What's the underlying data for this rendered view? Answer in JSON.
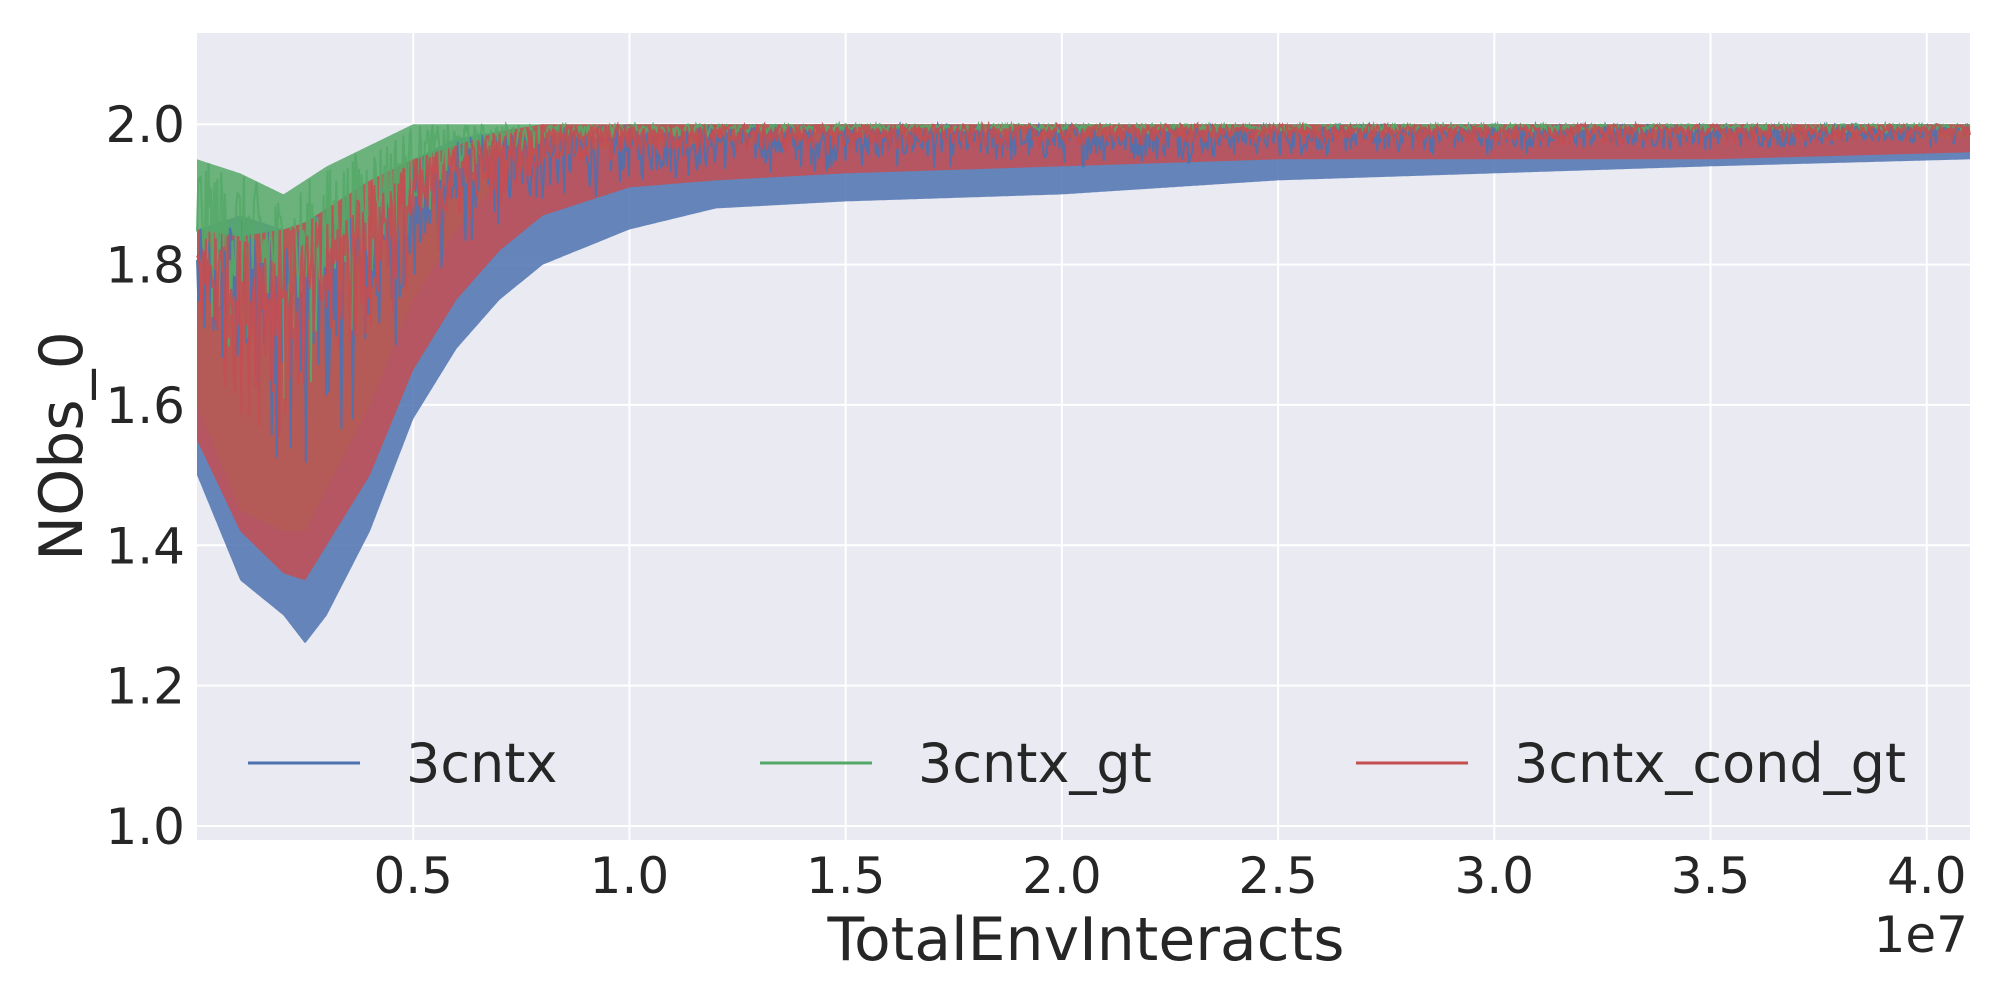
{
  "chart_data": {
    "type": "line",
    "xlabel": "TotalEnvInteracts",
    "ylabel": "NObs_0",
    "x_offset_label": "1e7",
    "xlim": [
      0,
      41000000
    ],
    "ylim": [
      0.98,
      2.13
    ],
    "x_ticks": [
      5000000,
      10000000,
      15000000,
      20000000,
      25000000,
      30000000,
      35000000,
      40000000
    ],
    "x_tick_labels": [
      "0.5",
      "1.0",
      "1.5",
      "2.0",
      "2.5",
      "3.0",
      "3.5",
      "4.0"
    ],
    "y_ticks": [
      1.0,
      1.2,
      1.4,
      1.6,
      1.8,
      2.0
    ],
    "y_tick_labels": [
      "1.0",
      "1.2",
      "1.4",
      "1.6",
      "1.8",
      "2.0"
    ],
    "grid": true,
    "legend_position": "lower center",
    "background_color": "#eaeaf2",
    "series": [
      {
        "name": "3cntx",
        "color": "#4c72b0",
        "x": [
          0,
          1000000,
          2000000,
          2500000,
          3000000,
          4000000,
          5000000,
          6000000,
          7000000,
          8000000,
          10000000,
          12000000,
          15000000,
          20000000,
          25000000,
          30000000,
          35000000,
          41000000
        ],
        "upper": [
          1.85,
          1.87,
          1.85,
          1.86,
          1.88,
          1.9,
          1.95,
          1.98,
          1.99,
          1.995,
          2.0,
          2.0,
          2.0,
          2.0,
          2.0,
          2.0,
          2.0,
          2.0
        ],
        "lower": [
          1.5,
          1.35,
          1.3,
          1.26,
          1.3,
          1.42,
          1.58,
          1.68,
          1.75,
          1.8,
          1.85,
          1.88,
          1.89,
          1.9,
          1.92,
          1.93,
          1.94,
          1.95
        ]
      },
      {
        "name": "3cntx_gt",
        "color": "#55a868",
        "x": [
          0,
          1000000,
          2000000,
          2500000,
          3000000,
          4000000,
          5000000,
          6000000,
          7000000,
          8000000,
          10000000,
          12000000,
          15000000,
          20000000,
          25000000,
          30000000,
          35000000,
          41000000
        ],
        "upper": [
          1.95,
          1.93,
          1.9,
          1.92,
          1.94,
          1.97,
          2.0,
          2.0,
          2.0,
          2.0,
          2.0,
          2.0,
          2.0,
          2.0,
          2.0,
          2.0,
          2.0,
          2.0
        ],
        "lower": [
          1.6,
          1.45,
          1.42,
          1.42,
          1.48,
          1.6,
          1.75,
          1.85,
          1.92,
          1.95,
          1.97,
          1.97,
          1.98,
          1.98,
          1.98,
          1.98,
          1.98,
          1.98
        ]
      },
      {
        "name": "3cntx_cond_gt",
        "color": "#c44e52",
        "x": [
          0,
          1000000,
          2000000,
          2500000,
          3000000,
          4000000,
          5000000,
          6000000,
          7000000,
          8000000,
          10000000,
          12000000,
          15000000,
          20000000,
          25000000,
          30000000,
          35000000,
          41000000
        ],
        "upper": [
          1.85,
          1.84,
          1.85,
          1.86,
          1.88,
          1.92,
          1.95,
          1.97,
          1.99,
          2.0,
          2.0,
          2.0,
          2.0,
          2.0,
          2.0,
          2.0,
          2.0,
          2.0
        ],
        "lower": [
          1.55,
          1.42,
          1.36,
          1.35,
          1.4,
          1.5,
          1.65,
          1.75,
          1.82,
          1.87,
          1.91,
          1.92,
          1.93,
          1.94,
          1.95,
          1.95,
          1.95,
          1.96
        ]
      }
    ]
  }
}
